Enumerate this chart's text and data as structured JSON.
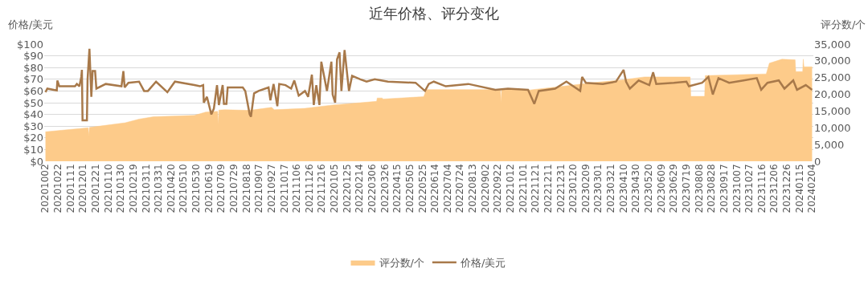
{
  "chart_data": {
    "type": "line",
    "title": "近年价格、评分变化",
    "ylabel": "价格/美元",
    "y2label": "评分数/个",
    "series": [
      {
        "name": "评分数/个",
        "type": "area",
        "axis": "y2",
        "color": "#fdcb8a",
        "x": [
          "2020-10-02",
          "2020-12-09",
          "2020-12-10",
          "2020-12-11",
          "2021-02-06",
          "2021-02-28",
          "2021-03-23",
          "2021-05-27",
          "2021-06-14",
          "2021-07-03",
          "2021-07-04",
          "2021-07-05",
          "2021-07-14",
          "2021-08-23",
          "2021-09-27",
          "2021-10-01",
          "2021-11-19",
          "2022-01-02",
          "2022-03-13",
          "2022-03-14",
          "2022-03-22",
          "2022-03-23",
          "2022-05-27",
          "2022-05-31",
          "2022-09-26",
          "2022-09-27",
          "2022-09-28",
          "2022-11-12",
          "2022-12-29",
          "2023-02-21",
          "2023-04-07",
          "2023-05-13",
          "2023-07-25",
          "2023-07-26",
          "2023-08-17",
          "2023-08-18",
          "2023-11-23",
          "2023-11-28",
          "2023-12-18",
          "2024-01-08",
          "2024-01-09",
          "2024-01-20",
          "2024-01-21",
          "2024-01-22",
          "2024-02-04"
        ],
        "values": [
          8800,
          10000,
          7700,
          10100,
          11500,
          12600,
          13300,
          13700,
          14700,
          14900,
          10900,
          15300,
          15400,
          15200,
          16100,
          15400,
          15800,
          16800,
          17900,
          18900,
          18900,
          18600,
          19300,
          21400,
          21400,
          17400,
          21400,
          21300,
          22300,
          23500,
          24300,
          25200,
          25200,
          19400,
          19400,
          25600,
          26100,
          29300,
          30500,
          30300,
          26800,
          26800,
          30500,
          28200,
          28200
        ]
      },
      {
        "name": "价格/美元",
        "axis": "y",
        "color": "#a8794a",
        "x": [
          "2020-10-02",
          "2020-10-05",
          "2020-10-20",
          "2020-10-21",
          "2020-10-24",
          "2020-11-18",
          "2020-11-21",
          "2020-11-25",
          "2020-11-28",
          "2020-11-29",
          "2020-11-30",
          "2020-12-07",
          "2020-12-08",
          "2020-12-11",
          "2020-12-14",
          "2020-12-16",
          "2020-12-20",
          "2020-12-22",
          "2021-01-06",
          "2021-01-31",
          "2021-02-03",
          "2021-02-05",
          "2021-02-11",
          "2021-02-28",
          "2021-03-08",
          "2021-03-14",
          "2021-03-27",
          "2021-04-14",
          "2021-04-26",
          "2021-05-27",
          "2021-06-05",
          "2021-06-10",
          "2021-06-11",
          "2021-06-16",
          "2021-06-23",
          "2021-06-27",
          "2021-07-02",
          "2021-07-05",
          "2021-07-11",
          "2021-07-13",
          "2021-07-17",
          "2021-07-19",
          "2021-08-12",
          "2021-08-16",
          "2021-08-23",
          "2021-08-25",
          "2021-08-30",
          "2021-09-06",
          "2021-09-22",
          "2021-09-25",
          "2021-09-30",
          "2021-10-06",
          "2021-10-09",
          "2021-10-19",
          "2021-10-28",
          "2021-11-02",
          "2021-11-09",
          "2021-11-19",
          "2021-11-24",
          "2021-11-30",
          "2021-12-03",
          "2021-12-07",
          "2021-12-12",
          "2021-12-15",
          "2021-12-24",
          "2021-12-31",
          "2022-01-02",
          "2022-01-06",
          "2022-01-09",
          "2022-01-13",
          "2022-01-16",
          "2022-01-21",
          "2022-01-28",
          "2022-02-02",
          "2022-02-15",
          "2022-02-25",
          "2022-03-10",
          "2022-03-31",
          "2022-05-14",
          "2022-05-29",
          "2022-06-04",
          "2022-06-12",
          "2022-07-01",
          "2022-08-06",
          "2022-09-18",
          "2022-10-08",
          "2022-11-09",
          "2022-11-19",
          "2022-11-26",
          "2022-12-22",
          "2023-01-09",
          "2023-01-31",
          "2023-02-03",
          "2023-02-09",
          "2023-03-08",
          "2023-03-29",
          "2023-04-10",
          "2023-04-14",
          "2023-04-20",
          "2023-05-04",
          "2023-05-21",
          "2023-05-27",
          "2023-06-01",
          "2023-06-29",
          "2023-07-19",
          "2023-07-23",
          "2023-08-13",
          "2023-08-23",
          "2023-08-30",
          "2023-09-08",
          "2023-09-25",
          "2023-10-18",
          "2023-11-08",
          "2023-11-15",
          "2023-11-25",
          "2023-12-13",
          "2023-12-22",
          "2024-01-05",
          "2024-01-11",
          "2024-01-25",
          "2024-02-04"
        ],
        "values": [
          59,
          62,
          60.5,
          69,
          64,
          64,
          66,
          64,
          72,
          78,
          35,
          35,
          70,
          96,
          55,
          77,
          77,
          62,
          66,
          64,
          77,
          63,
          67,
          68,
          60,
          60,
          68,
          59,
          68,
          65,
          64,
          65,
          50,
          55,
          40,
          45,
          65,
          48,
          65,
          49,
          49,
          63,
          63,
          60,
          40,
          38,
          58,
          60,
          63,
          52,
          66,
          47,
          66,
          65,
          62,
          69,
          56,
          60,
          55,
          74,
          48,
          65,
          48,
          85,
          60,
          85,
          57,
          50,
          87,
          93,
          60,
          95,
          60,
          73,
          70,
          68,
          70,
          68,
          67,
          60,
          66,
          68,
          64,
          66,
          61,
          62,
          61,
          49,
          60,
          62,
          68,
          60,
          72,
          67,
          66,
          68,
          78,
          68,
          62,
          69,
          65,
          76,
          66,
          67,
          68,
          64,
          67,
          72,
          57,
          71,
          67,
          69,
          71,
          61,
          67,
          69,
          62,
          69,
          61,
          65,
          61
        ]
      }
    ],
    "xlim": [
      "2020-09-30",
      "2024-02-06"
    ],
    "xticks": [
      {
        "value": "2020-10-02",
        "label": "20201002"
      },
      {
        "value": "2020-10-22",
        "label": "20201022"
      },
      {
        "value": "2020-11-11",
        "label": "20201111"
      },
      {
        "value": "2020-12-01",
        "label": "20201201"
      },
      {
        "value": "2020-12-21",
        "label": "20201221"
      },
      {
        "value": "2021-01-10",
        "label": "20210110"
      },
      {
        "value": "2021-01-30",
        "label": "20210130"
      },
      {
        "value": "2021-02-19",
        "label": "20210219"
      },
      {
        "value": "2021-03-11",
        "label": "20210311"
      },
      {
        "value": "2021-03-31",
        "label": "20210331"
      },
      {
        "value": "2021-04-20",
        "label": "20210420"
      },
      {
        "value": "2021-05-10",
        "label": "20210510"
      },
      {
        "value": "2021-05-30",
        "label": "20210530"
      },
      {
        "value": "2021-06-19",
        "label": "20210619"
      },
      {
        "value": "2021-07-09",
        "label": "20210709"
      },
      {
        "value": "2021-07-29",
        "label": "20210729"
      },
      {
        "value": "2021-08-18",
        "label": "20210818"
      },
      {
        "value": "2021-09-07",
        "label": "20210907"
      },
      {
        "value": "2021-09-27",
        "label": "20210927"
      },
      {
        "value": "2021-10-17",
        "label": "20211017"
      },
      {
        "value": "2021-11-06",
        "label": "20211106"
      },
      {
        "value": "2021-11-26",
        "label": "20211126"
      },
      {
        "value": "2021-12-16",
        "label": "20211216"
      },
      {
        "value": "2022-01-05",
        "label": "20220105"
      },
      {
        "value": "2022-01-25",
        "label": "20220125"
      },
      {
        "value": "2022-02-14",
        "label": "20220214"
      },
      {
        "value": "2022-03-06",
        "label": "20220306"
      },
      {
        "value": "2022-03-26",
        "label": "20220326"
      },
      {
        "value": "2022-04-15",
        "label": "20220415"
      },
      {
        "value": "2022-05-05",
        "label": "20220505"
      },
      {
        "value": "2022-05-25",
        "label": "20220525"
      },
      {
        "value": "2022-06-14",
        "label": "20220614"
      },
      {
        "value": "2022-07-04",
        "label": "20220704"
      },
      {
        "value": "2022-07-24",
        "label": "20220724"
      },
      {
        "value": "2022-08-13",
        "label": "20220813"
      },
      {
        "value": "2022-09-02",
        "label": "20220902"
      },
      {
        "value": "2022-09-22",
        "label": "20220922"
      },
      {
        "value": "2022-10-12",
        "label": "20221012"
      },
      {
        "value": "2022-11-01",
        "label": "20221101"
      },
      {
        "value": "2022-11-21",
        "label": "20221121"
      },
      {
        "value": "2022-12-11",
        "label": "20221211"
      },
      {
        "value": "2022-12-31",
        "label": "20221231"
      },
      {
        "value": "2023-01-20",
        "label": "20230120"
      },
      {
        "value": "2023-02-09",
        "label": "20230209"
      },
      {
        "value": "2023-03-01",
        "label": "20230301"
      },
      {
        "value": "2023-03-21",
        "label": "20230321"
      },
      {
        "value": "2023-04-10",
        "label": "20230410"
      },
      {
        "value": "2023-04-30",
        "label": "20230430"
      },
      {
        "value": "2023-05-20",
        "label": "20230520"
      },
      {
        "value": "2023-06-09",
        "label": "20230609"
      },
      {
        "value": "2023-06-29",
        "label": "20230629"
      },
      {
        "value": "2023-07-19",
        "label": "20230719"
      },
      {
        "value": "2023-08-08",
        "label": "20230808"
      },
      {
        "value": "2023-08-28",
        "label": "20230828"
      },
      {
        "value": "2023-09-17",
        "label": "20230917"
      },
      {
        "value": "2023-10-07",
        "label": "20231007"
      },
      {
        "value": "2023-10-27",
        "label": "20231027"
      },
      {
        "value": "2023-11-16",
        "label": "20231116"
      },
      {
        "value": "2023-12-06",
        "label": "20231206"
      },
      {
        "value": "2023-12-26",
        "label": "20231226"
      },
      {
        "value": "2024-01-15",
        "label": "20240115"
      },
      {
        "value": "2024-02-04",
        "label": "20240204"
      }
    ],
    "ylim": [
      0,
      100
    ],
    "yticks": [
      {
        "value": 0,
        "label": "$0"
      },
      {
        "value": 10,
        "label": "$10"
      },
      {
        "value": 20,
        "label": "$20"
      },
      {
        "value": 30,
        "label": "$30"
      },
      {
        "value": 40,
        "label": "$40"
      },
      {
        "value": 50,
        "label": "$50"
      },
      {
        "value": 60,
        "label": "$60"
      },
      {
        "value": 70,
        "label": "$70"
      },
      {
        "value": 80,
        "label": "$80"
      },
      {
        "value": 90,
        "label": "$90"
      },
      {
        "value": 100,
        "label": "$100"
      }
    ],
    "y2lim": [
      0,
      35000
    ],
    "y2ticks": [
      0,
      {
        "value": 5000,
        "label": "5,000"
      },
      {
        "value": 10000,
        "label": "10,000"
      },
      {
        "value": 15000,
        "label": "15,000"
      },
      {
        "value": 20000,
        "label": "20,000"
      },
      {
        "value": 25000,
        "label": "25,000"
      },
      {
        "value": 30000,
        "label": "30,000"
      },
      {
        "value": 35000,
        "label": "35,000"
      }
    ],
    "grid": "y",
    "legend": "bottom",
    "marker": "none",
    "line_style": "solid"
  }
}
